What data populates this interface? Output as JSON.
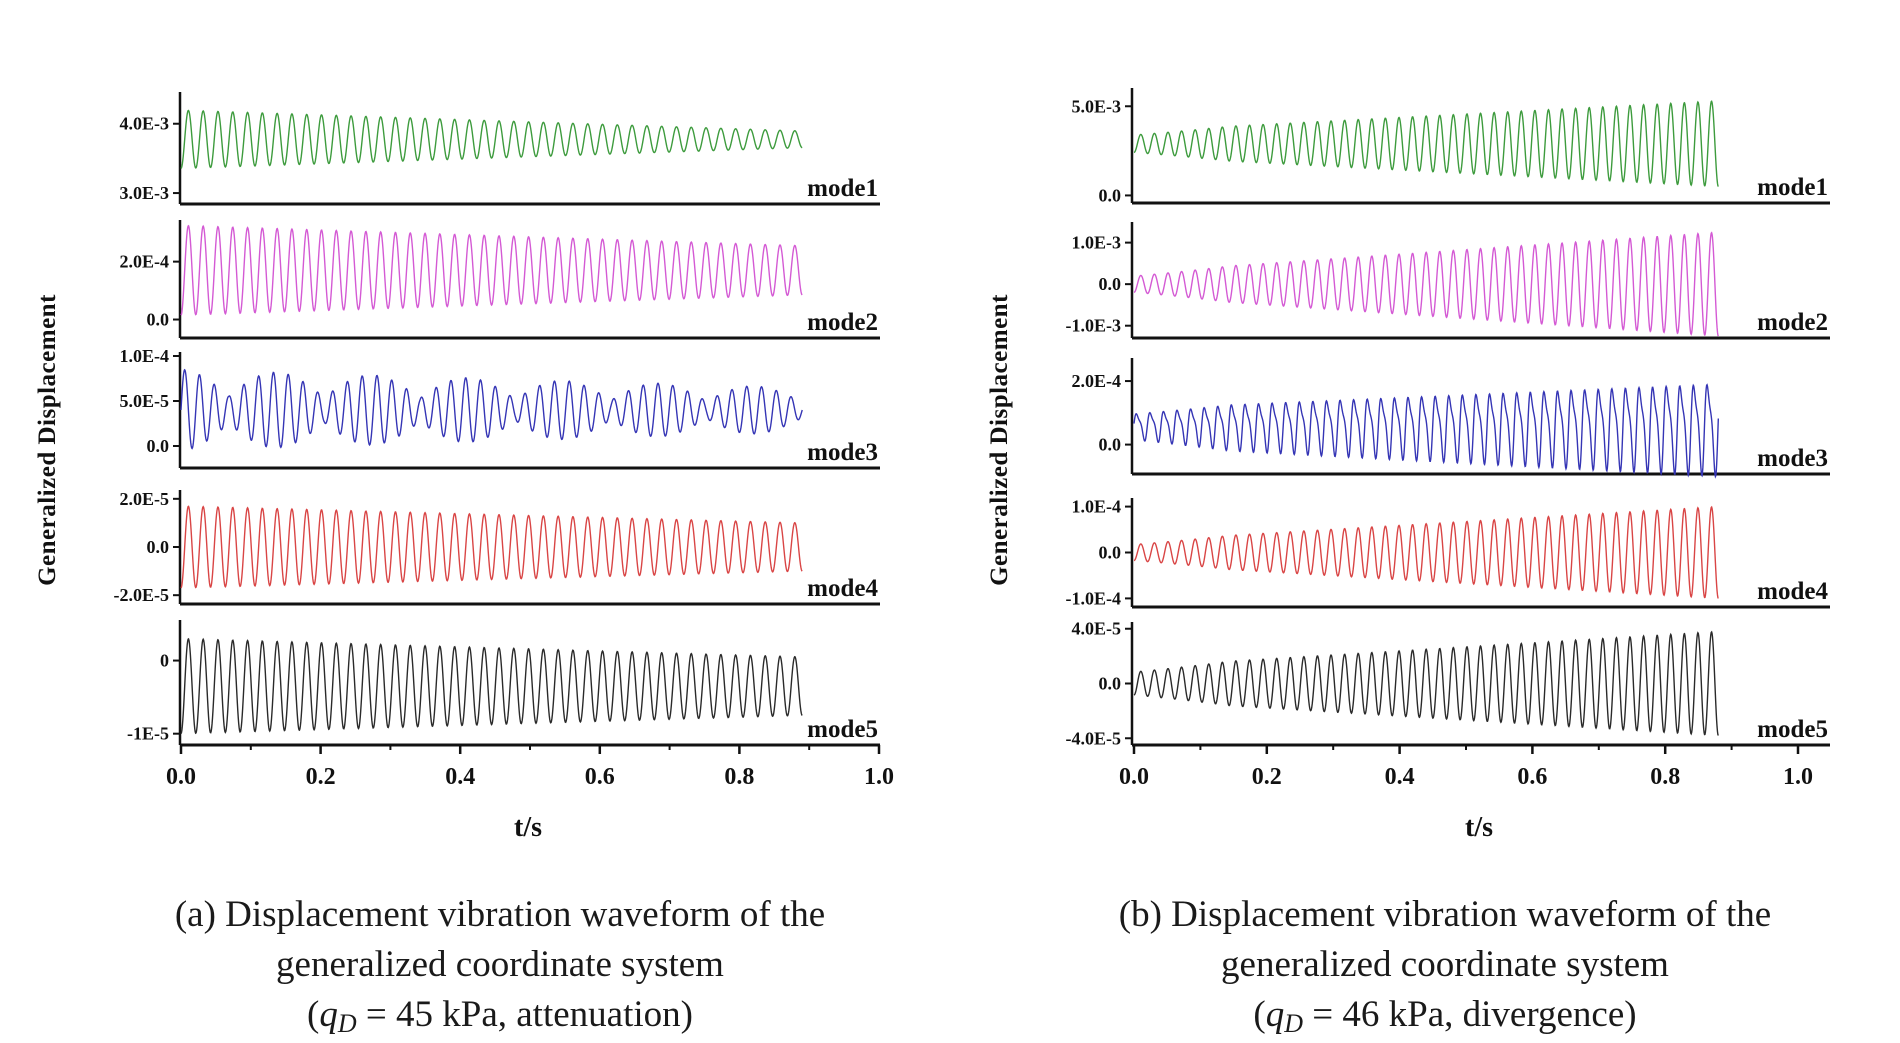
{
  "chart_data": [
    {
      "type": "line",
      "panel": "a",
      "ylabel": "Generalized Displacement",
      "xlabel": "t/s",
      "xlim": [
        0.0,
        1.0
      ],
      "xticks": [
        "0.0",
        "0.2",
        "0.4",
        "0.6",
        "0.8",
        "1.0"
      ],
      "caption_line1": "(a) Displacement vibration waveform of the",
      "caption_line2": "generalized coordinate system",
      "caption_q": "q",
      "caption_sub": "D",
      "caption_rest": " = 45 kPa, attenuation)",
      "series": [
        {
          "name": "mode1",
          "color": "#3d9b3d",
          "ylim": [
            0.0029,
            0.0044
          ],
          "yticks": [
            {
              "label": "4.0E-3",
              "value": 0.004
            },
            {
              "label": "3.0E-3",
              "value": 0.003
            }
          ],
          "t_end": 0.89,
          "cycles": 42,
          "center": 0.003775,
          "amp_start": 0.00042,
          "amp_end": 0.00012,
          "phase": -1.57
        },
        {
          "name": "mode2",
          "color": "#d45ad4",
          "ylim": [
            -5e-05,
            0.00033
          ],
          "yticks": [
            {
              "label": "2.0E-4",
              "value": 0.0002
            },
            {
              "label": "0.0",
              "value": 0.0
            }
          ],
          "t_end": 0.89,
          "cycles": 42,
          "center": 0.00017,
          "amp_start": 0.000155,
          "amp_end": 8.5e-05,
          "phase": -1.57
        },
        {
          "name": "mode3",
          "color": "#3535b5",
          "ylim": [
            -2e-05,
            0.0001
          ],
          "yticks": [
            {
              "label": "1.0E-4",
              "value": 0.0001
            },
            {
              "label": "5.0E-5",
              "value": 5e-05
            },
            {
              "label": "0.0",
              "value": 0.0
            }
          ],
          "t_end": 0.89,
          "cycles": 42,
          "center": 4e-05,
          "amp_start": 4.5e-05,
          "amp_end": 2.5e-05,
          "beat": 6.5,
          "phase": 0.0
        },
        {
          "name": "mode4",
          "color": "#d94545",
          "ylim": [
            -2.2e-05,
            2.2e-05
          ],
          "yticks": [
            {
              "label": "2.0E-5",
              "value": 2e-05
            },
            {
              "label": "0.0",
              "value": 0.0
            },
            {
              "label": "-2.0E-5",
              "value": -2e-05
            }
          ],
          "t_end": 0.89,
          "cycles": 42,
          "center": 0.0,
          "amp_start": 1.7e-05,
          "amp_end": 1e-05,
          "phase": -1.57
        },
        {
          "name": "mode5",
          "color": "#2a2a2a",
          "ylim": [
            -1.1e-05,
            5e-06
          ],
          "yticks": [
            {
              "label": "0",
              "value": 0.0
            },
            {
              "label": "-1E-5",
              "value": -1e-05
            }
          ],
          "t_end": 0.89,
          "cycles": 42,
          "center": -3.5e-06,
          "amp_start": 6.5e-06,
          "amp_end": 4e-06,
          "phase": -1.57
        }
      ]
    },
    {
      "type": "line",
      "panel": "b",
      "ylabel": "Generalized Displacement",
      "xlabel": "t/s",
      "xlim": [
        0.0,
        1.0
      ],
      "xticks": [
        "0.0",
        "0.2",
        "0.4",
        "0.6",
        "0.8",
        "1.0"
      ],
      "caption_line1": "(b) Displacement vibration waveform of the",
      "caption_line2": "generalized coordinate system",
      "caption_q": "q",
      "caption_sub": "D",
      "caption_rest": " = 46 kPa, divergence)",
      "series": [
        {
          "name": "mode1",
          "color": "#3d9b3d",
          "ylim": [
            -0.0002,
            0.0058
          ],
          "yticks": [
            {
              "label": "5.0E-3",
              "value": 0.005
            },
            {
              "label": "0.0",
              "value": 0.0
            }
          ],
          "t_end": 0.88,
          "cycles": 43,
          "center": 0.0029,
          "amp_start": 0.0007,
          "amp_end": 0.0024,
          "phase": -1.57
        },
        {
          "name": "mode2",
          "color": "#d45ad4",
          "ylim": [
            -0.0012,
            0.0014
          ],
          "yticks": [
            {
              "label": "1.0E-3",
              "value": 0.001
            },
            {
              "label": "0.0",
              "value": 0.0
            },
            {
              "label": "-1.0E-3",
              "value": -0.001
            }
          ],
          "t_end": 0.88,
          "cycles": 43,
          "center": 0.0,
          "amp_start": 0.00028,
          "amp_end": 0.00125,
          "phase": -1.57
        },
        {
          "name": "mode3",
          "color": "#3535b5",
          "ylim": [
            -8e-05,
            0.00026
          ],
          "yticks": [
            {
              "label": "2.0E-4",
              "value": 0.0002
            },
            {
              "label": "0.0",
              "value": 0.0
            }
          ],
          "t_end": 0.88,
          "cycles": 43,
          "center": 6e-05,
          "amp_start": 6e-05,
          "amp_end": 0.00015,
          "harmonic": 0.3,
          "phase": 0.0
        },
        {
          "name": "mode4",
          "color": "#d94545",
          "ylim": [
            -0.00011,
            0.00011
          ],
          "yticks": [
            {
              "label": "1.0E-4",
              "value": 0.0001
            },
            {
              "label": "0.0",
              "value": 0.0
            },
            {
              "label": "-1.0E-4",
              "value": -0.0001
            }
          ],
          "t_end": 0.88,
          "cycles": 43,
          "center": 0.0,
          "amp_start": 2.5e-05,
          "amp_end": 0.0001,
          "phase": -1.57
        },
        {
          "name": "mode5",
          "color": "#2a2a2a",
          "ylim": [
            -4.2e-05,
            4.2e-05
          ],
          "yticks": [
            {
              "label": "4.0E-5",
              "value": 4e-05
            },
            {
              "label": "0.0",
              "value": 0.0
            },
            {
              "label": "-4.0E-5",
              "value": -4e-05
            }
          ],
          "t_end": 0.88,
          "cycles": 43,
          "center": 0.0,
          "amp_start": 1.2e-05,
          "amp_end": 3.8e-05,
          "phase": -1.57
        }
      ]
    }
  ]
}
